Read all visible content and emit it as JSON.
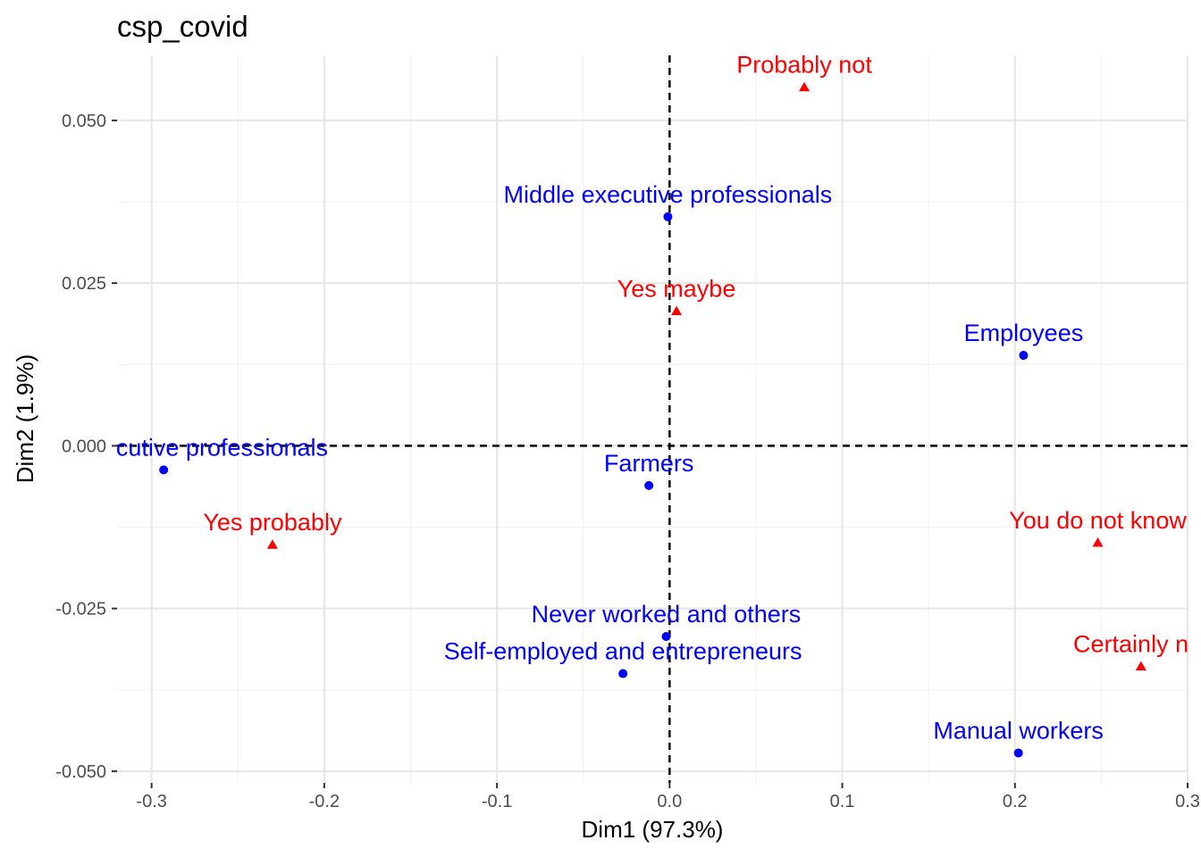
{
  "chart_data": {
    "type": "scatter",
    "title": "csp_covid",
    "xlabel": "Dim1 (97.3%)",
    "ylabel": "Dim2 (1.9%)",
    "xlim": [
      -0.32,
      0.3
    ],
    "ylim": [
      -0.0518,
      0.06
    ],
    "x_ticks": [
      -0.3,
      -0.2,
      -0.1,
      0.0,
      0.1,
      0.2,
      0.3
    ],
    "x_tick_labels": [
      "-0.3",
      "-0.2",
      "-0.1",
      "0.0",
      "0.1",
      "0.2",
      "0.3"
    ],
    "y_ticks": [
      -0.05,
      -0.025,
      0.0,
      0.025,
      0.05
    ],
    "y_tick_labels": [
      "-0.050",
      "-0.025",
      "0.000",
      "0.025",
      "0.050"
    ],
    "grid": true,
    "reference_lines": {
      "x": 0,
      "y": 0,
      "style": "dashed"
    },
    "series": [
      {
        "marker": "circle",
        "color": "#0000ff",
        "points": [
          {
            "label": "Middle executive professionals",
            "x": -0.001,
            "y": 0.0352
          },
          {
            "label": "Employees",
            "x": 0.205,
            "y": 0.0139
          },
          {
            "label": "Higher executive professionals",
            "x": -0.293,
            "y": -0.0037
          },
          {
            "label": "Farmers",
            "x": -0.012,
            "y": -0.0061
          },
          {
            "label": "Never worked and others",
            "x": -0.002,
            "y": -0.0293
          },
          {
            "label": "Self-employed and entrepreneurs",
            "x": -0.027,
            "y": -0.035
          },
          {
            "label": "Manual workers",
            "x": 0.202,
            "y": -0.0472
          }
        ]
      },
      {
        "marker": "triangle",
        "color": "#ff0000",
        "points": [
          {
            "label": "Probably not",
            "x": 0.078,
            "y": 0.0551
          },
          {
            "label": "Yes maybe",
            "x": 0.004,
            "y": 0.0207
          },
          {
            "label": "Yes probably",
            "x": -0.23,
            "y": -0.0152
          },
          {
            "label": "You do not know",
            "x": 0.248,
            "y": -0.0149
          },
          {
            "label": "Certainly not",
            "x": 0.273,
            "y": -0.0339
          }
        ]
      }
    ]
  }
}
